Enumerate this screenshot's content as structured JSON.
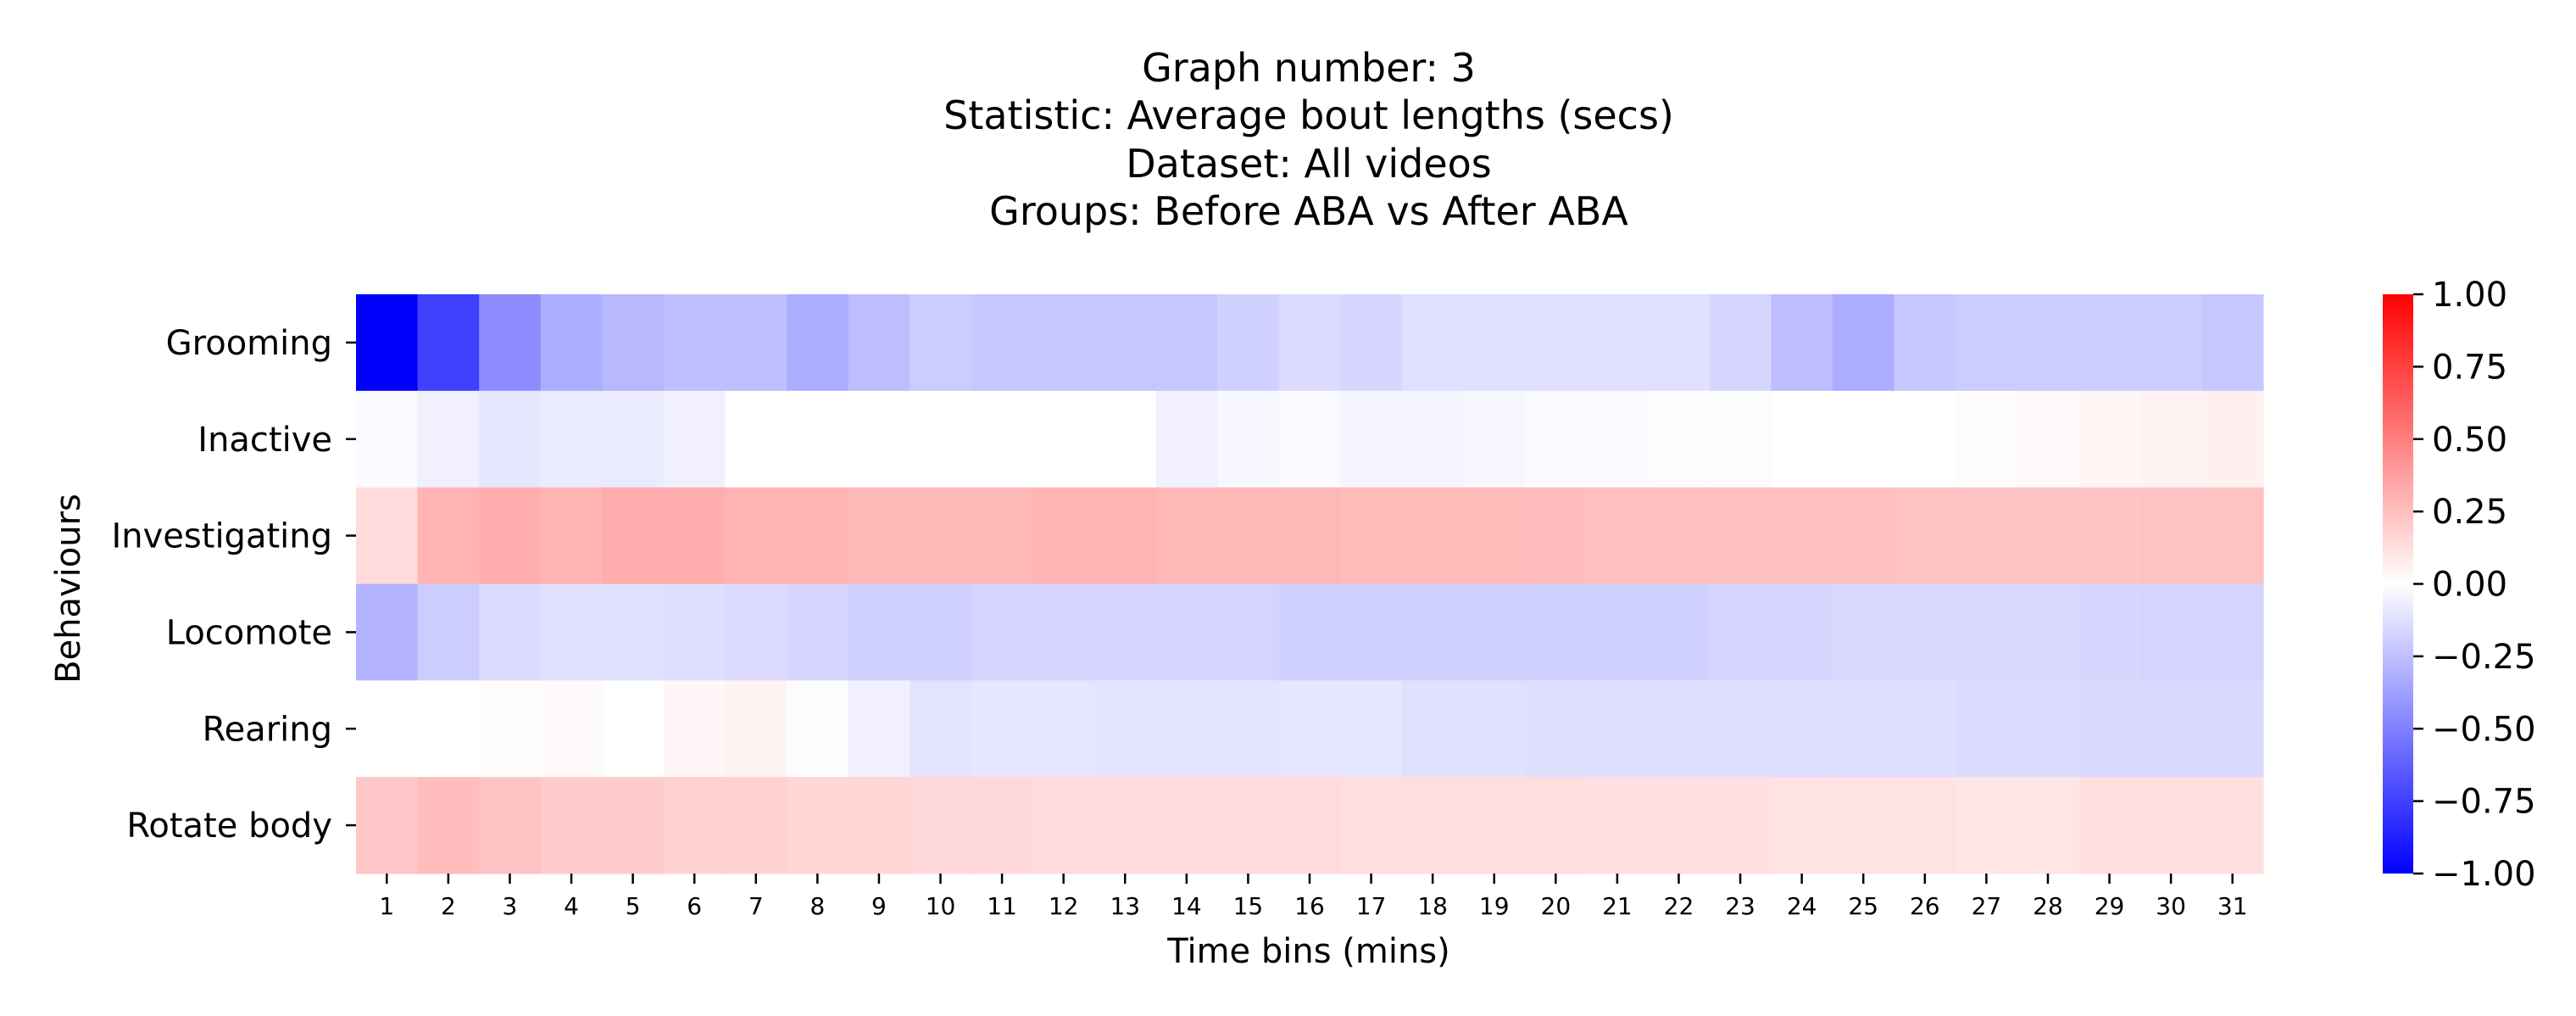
{
  "chart_data": {
    "type": "heatmap",
    "title_lines": [
      "Graph number: 3",
      "Statistic: Average bout lengths (secs)",
      "Dataset: All videos",
      "Groups: Before ABA vs After ABA"
    ],
    "xlabel": "Time bins (mins)",
    "ylabel": "Behaviours",
    "x_categories": [
      "1",
      "2",
      "3",
      "4",
      "5",
      "6",
      "7",
      "8",
      "9",
      "10",
      "11",
      "12",
      "13",
      "14",
      "15",
      "16",
      "17",
      "18",
      "19",
      "20",
      "21",
      "22",
      "23",
      "24",
      "25",
      "26",
      "27",
      "28",
      "29",
      "30",
      "31"
    ],
    "y_categories": [
      "Grooming",
      "Inactive",
      "Investigating",
      "Locomote",
      "Rearing",
      "Rotate body"
    ],
    "values": [
      [
        -1.0,
        -0.75,
        -0.45,
        -0.32,
        -0.28,
        -0.25,
        -0.25,
        -0.32,
        -0.26,
        -0.2,
        -0.22,
        -0.22,
        -0.22,
        -0.22,
        -0.18,
        -0.14,
        -0.16,
        -0.12,
        -0.12,
        -0.12,
        -0.12,
        -0.12,
        -0.16,
        -0.26,
        -0.32,
        -0.22,
        -0.2,
        -0.2,
        -0.2,
        -0.2,
        -0.22
      ],
      [
        -0.02,
        -0.06,
        -0.1,
        -0.08,
        -0.08,
        -0.06,
        0.0,
        0.0,
        0.0,
        0.0,
        0.0,
        0.0,
        0.0,
        -0.06,
        -0.03,
        -0.02,
        -0.04,
        -0.04,
        -0.03,
        -0.02,
        -0.02,
        -0.01,
        -0.01,
        0.0,
        0.0,
        0.0,
        0.01,
        0.02,
        0.04,
        0.05,
        0.06
      ],
      [
        0.14,
        0.3,
        0.32,
        0.3,
        0.32,
        0.32,
        0.3,
        0.3,
        0.28,
        0.28,
        0.28,
        0.3,
        0.3,
        0.28,
        0.28,
        0.28,
        0.27,
        0.27,
        0.27,
        0.26,
        0.25,
        0.25,
        0.25,
        0.25,
        0.25,
        0.24,
        0.24,
        0.23,
        0.23,
        0.24,
        0.24
      ],
      [
        -0.3,
        -0.2,
        -0.14,
        -0.12,
        -0.12,
        -0.13,
        -0.14,
        -0.16,
        -0.18,
        -0.18,
        -0.17,
        -0.17,
        -0.17,
        -0.17,
        -0.17,
        -0.18,
        -0.18,
        -0.18,
        -0.18,
        -0.18,
        -0.18,
        -0.18,
        -0.17,
        -0.16,
        -0.15,
        -0.15,
        -0.15,
        -0.15,
        -0.16,
        -0.17,
        -0.17
      ],
      [
        0.0,
        0.0,
        0.01,
        0.02,
        0.0,
        0.03,
        0.05,
        -0.01,
        -0.06,
        -0.11,
        -0.1,
        -0.1,
        -0.11,
        -0.11,
        -0.11,
        -0.1,
        -0.1,
        -0.12,
        -0.12,
        -0.13,
        -0.13,
        -0.13,
        -0.13,
        -0.13,
        -0.13,
        -0.13,
        -0.14,
        -0.14,
        -0.15,
        -0.15,
        -0.15
      ],
      [
        0.22,
        0.26,
        0.24,
        0.2,
        0.2,
        0.18,
        0.18,
        0.16,
        0.16,
        0.15,
        0.15,
        0.14,
        0.14,
        0.14,
        0.14,
        0.14,
        0.13,
        0.13,
        0.13,
        0.13,
        0.12,
        0.12,
        0.12,
        0.11,
        0.11,
        0.11,
        0.1,
        0.1,
        0.12,
        0.12,
        0.12
      ]
    ],
    "vmin": -1.0,
    "vmax": 1.0,
    "colormap": "bwr",
    "colors": {
      "min": "#0000ff",
      "mid": "#ffffff",
      "max": "#ff0000"
    },
    "colorbar_ticks": [
      "1.00",
      "0.75",
      "0.50",
      "0.25",
      "0.00",
      "−0.25",
      "−0.50",
      "−0.75",
      "−1.00"
    ],
    "colorbar_tick_values": [
      1.0,
      0.75,
      0.5,
      0.25,
      0.0,
      -0.25,
      -0.5,
      -0.75,
      -1.0
    ],
    "grid": false,
    "legend": "colorbar-right"
  }
}
